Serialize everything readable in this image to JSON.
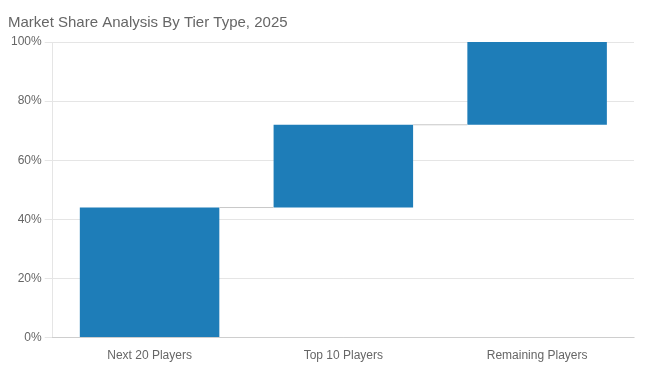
{
  "chart_data": {
    "type": "waterfall",
    "title": "Market Share Analysis By Tier Type, 2025",
    "categories": [
      "Next 20 Players",
      "Top 10 Players",
      "Remaining Players"
    ],
    "values": [
      44,
      28,
      28
    ],
    "color": "#1e7db8",
    "ylim": [
      0,
      100
    ],
    "yticks": [
      {
        "value": 0,
        "label": "0%"
      },
      {
        "value": 20,
        "label": "20%"
      },
      {
        "value": 40,
        "label": "40%"
      },
      {
        "value": 60,
        "label": "60%"
      },
      {
        "value": 80,
        "label": "80%"
      },
      {
        "value": 100,
        "label": "100%"
      }
    ],
    "grid": true
  }
}
